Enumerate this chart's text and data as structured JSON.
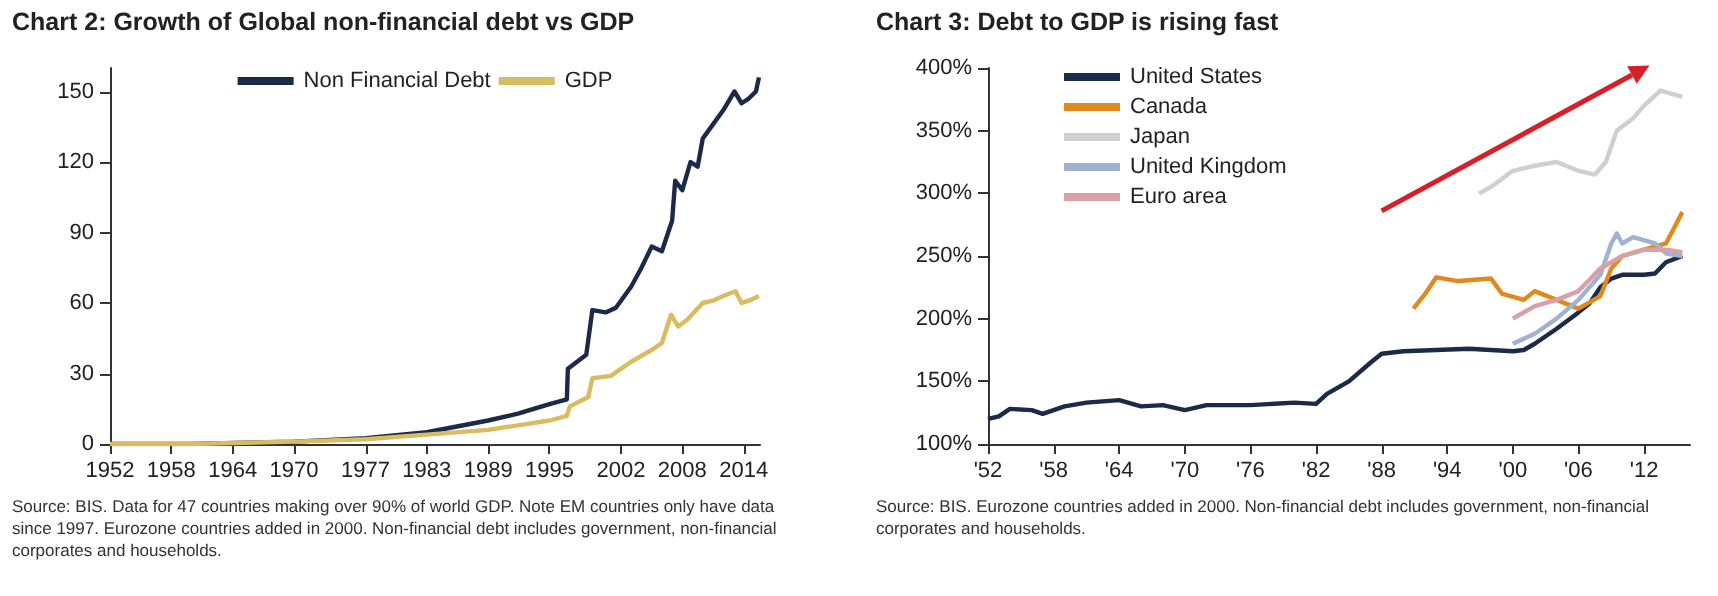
{
  "chart_data": [
    {
      "type": "line",
      "title": "Chart 2: Growth of Global non-financial debt vs GDP",
      "annotations": [
        "Source: BIS. Data for 47 countries making over 90% of world GDP. Note EM countries only have data since 1997. Eurozone countries added in 2000. Non-financial debt includes government, non-financial corporates and households."
      ],
      "xlim": [
        1952,
        2015.6
      ],
      "xticks": [
        1952,
        1958,
        1964,
        1970,
        1977,
        1983,
        1989,
        1995,
        2002,
        2008,
        2014
      ],
      "ylim": [
        0,
        160
      ],
      "yticks": [
        0,
        30,
        60,
        90,
        120,
        150
      ],
      "legend": "top",
      "grid": false,
      "series": [
        {
          "name": "Non Financial Debt",
          "color": "#1b2a48",
          "x": [
            1952,
            1960,
            1970,
            1977,
            1983,
            1989,
            1992,
            1995,
            1996.7,
            1996.8,
            1998.6,
            1999.2,
            2000.5,
            2001.5,
            2003,
            2004,
            2005,
            2006,
            2007,
            2007.3,
            2008,
            2008.8,
            2009.5,
            2010,
            2011,
            2012,
            2013.1,
            2013.8,
            2014.5,
            2015.2,
            2015.5
          ],
          "values": [
            0,
            0,
            1,
            2.5,
            5,
            10,
            13,
            17,
            19,
            32,
            38,
            57,
            56,
            58,
            67,
            75,
            84,
            82,
            95,
            112,
            108,
            120,
            118,
            130,
            136,
            142,
            150,
            145,
            147,
            150,
            156
          ]
        },
        {
          "name": "GDP",
          "color": "#d9bb62",
          "x": [
            1952,
            1960,
            1970,
            1977,
            1983,
            1989,
            1995,
            1996.7,
            1997,
            1998.8,
            1999.2,
            2001,
            2003,
            2005,
            2006,
            2006.9,
            2007.6,
            2008.5,
            2010,
            2011,
            2012,
            2013.2,
            2013.8,
            2014.5,
            2015.5
          ],
          "values": [
            0,
            0,
            1,
            2,
            4,
            6,
            10,
            12,
            16,
            20,
            28,
            29,
            35,
            40,
            43,
            55,
            50,
            53,
            60,
            61,
            63,
            65,
            60,
            61,
            63
          ]
        }
      ]
    },
    {
      "type": "line",
      "title": "Chart 3: Debt to GDP is rising fast",
      "annotations": [
        "Source: BIS. Eurozone countries added in 2000. Non-financial debt includes government, non-financial corporates and households."
      ],
      "xlim": [
        1952,
        2016.2
      ],
      "xticks": [
        {
          "value": 1952,
          "label": "'52"
        },
        {
          "value": 1958,
          "label": "'58"
        },
        {
          "value": 1964,
          "label": "'64"
        },
        {
          "value": 1970,
          "label": "'70"
        },
        {
          "value": 1976,
          "label": "'76"
        },
        {
          "value": 1982,
          "label": "'82"
        },
        {
          "value": 1988,
          "label": "'88"
        },
        {
          "value": 1994,
          "label": "'94"
        },
        {
          "value": 2000,
          "label": "'00"
        },
        {
          "value": 2006,
          "label": "'06"
        },
        {
          "value": 2012,
          "label": "'12"
        }
      ],
      "ylim": [
        100,
        400
      ],
      "yticks": [
        {
          "value": 100,
          "label": "100%"
        },
        {
          "value": 150,
          "label": "150%"
        },
        {
          "value": 200,
          "label": "200%"
        },
        {
          "value": 250,
          "label": "250%"
        },
        {
          "value": 300,
          "label": "300%"
        },
        {
          "value": 350,
          "label": "350%"
        },
        {
          "value": 400,
          "label": "400%"
        }
      ],
      "legend": "top left",
      "grid": false,
      "series": [
        {
          "name": "United States",
          "color": "#1b2a48",
          "x": [
            1952,
            1953,
            1954,
            1956,
            1957,
            1959,
            1961,
            1964,
            1966,
            1968,
            1970,
            1972,
            1976,
            1980,
            1982,
            1983,
            1985,
            1987,
            1988,
            1990,
            1993,
            1996,
            1998,
            2000,
            2001,
            2002,
            2004,
            2006,
            2007,
            2008,
            2009,
            2010,
            2012,
            2013,
            2014,
            2015.5
          ],
          "values": [
            120,
            122,
            128,
            127,
            124,
            130,
            133,
            135,
            130,
            131,
            127,
            131,
            131,
            133,
            132,
            140,
            150,
            165,
            172,
            174,
            175,
            176,
            175,
            174,
            175,
            180,
            192,
            205,
            212,
            225,
            232,
            235,
            235,
            236,
            245,
            250
          ]
        },
        {
          "name": "Canada",
          "color": "#e08a1e",
          "x": [
            1990.9,
            1992,
            1993,
            1995,
            1998,
            1999,
            2001,
            2002,
            2004,
            2006,
            2008,
            2009,
            2010,
            2012,
            2014,
            2015.5
          ],
          "values": [
            208,
            220,
            233,
            230,
            232,
            220,
            215,
            222,
            215,
            208,
            218,
            240,
            250,
            255,
            260,
            285
          ]
        },
        {
          "name": "Japan",
          "color": "#cfcfcf",
          "x": [
            1996.9,
            1998,
            2000,
            2002,
            2004,
            2006,
            2007.5,
            2008.5,
            2009.5,
            2011,
            2012,
            2013.5,
            2015.5
          ],
          "values": [
            300,
            305,
            318,
            322,
            325,
            318,
            315,
            325,
            350,
            360,
            370,
            382,
            377
          ]
        },
        {
          "name": "United Kingdom",
          "color": "#9fb3d1",
          "x": [
            2000,
            2002,
            2004,
            2006,
            2008,
            2009,
            2009.5,
            2010,
            2011,
            2013,
            2014,
            2015.5
          ],
          "values": [
            180,
            188,
            200,
            215,
            235,
            260,
            268,
            260,
            265,
            260,
            252,
            250
          ]
        },
        {
          "name": "Euro area",
          "color": "#d9a0a8",
          "x": [
            2000,
            2002,
            2004,
            2006,
            2008,
            2010,
            2012,
            2014,
            2015.5
          ],
          "values": [
            200,
            210,
            215,
            222,
            240,
            250,
            255,
            255,
            253
          ]
        }
      ]
    }
  ]
}
